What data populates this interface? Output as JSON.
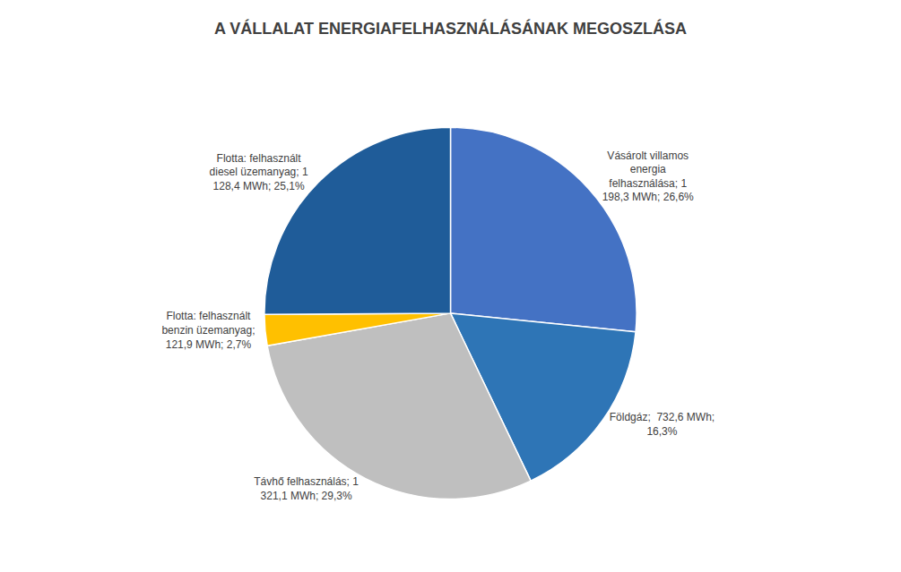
{
  "chart_data": {
    "type": "pie",
    "title": "A VÁLLALAT ENERGIAFELHASZNÁLÁSÁNAK MEGOSZLÁSA",
    "categories": [
      "Vásárolt villamos\nenergia\nfelhasználása; 1\n198,3 MWh; 26,6%",
      "Földgáz;  732,6 MWh;\n16,3%",
      "Távhő felhasználás; 1\n321,1 MWh; 29,3%",
      "Flotta: felhasznált\nbenzin üzemanyag;\n121,9 MWh; 2,7%",
      "Flotta: felhasznált\ndiesel üzemanyag; 1\n128,4 MWh; 25,1%"
    ],
    "values": [
      26.6,
      16.3,
      29.3,
      2.7,
      25.1
    ],
    "colors": [
      "#4472c4",
      "#2e75b6",
      "#bfbfbf",
      "#ffc000",
      "#1f5c99"
    ]
  }
}
